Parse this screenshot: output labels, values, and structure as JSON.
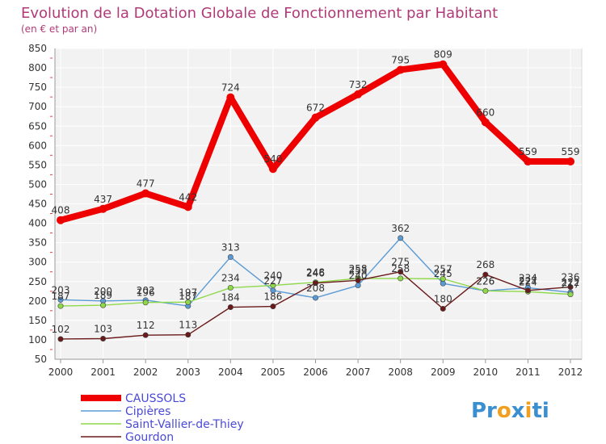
{
  "chart_data": {
    "type": "line",
    "title": "Evolution de la Dotation Globale de Fonctionnement par Habitant",
    "subtitle": "(en € et par an)",
    "categories": [
      "2000",
      "2001",
      "2002",
      "2003",
      "2004",
      "2005",
      "2006",
      "2007",
      "2008",
      "2009",
      "2010",
      "2011",
      "2012"
    ],
    "ylim": [
      50,
      850
    ],
    "yticks": [
      50,
      100,
      150,
      200,
      250,
      300,
      350,
      400,
      450,
      500,
      550,
      600,
      650,
      700,
      750,
      800,
      850
    ],
    "grid": true,
    "legend_position": "bottom-left",
    "series": [
      {
        "name": "CAUSSOLS",
        "color": "#ee0000",
        "values": [
          408,
          437,
          477,
          442,
          724,
          540,
          672,
          732,
          795,
          809,
          660,
          559,
          559
        ],
        "labels": [
          "408",
          "437",
          "477",
          "442",
          "724",
          "540",
          "672",
          "732",
          "795",
          "809",
          "660",
          "559",
          "559"
        ]
      },
      {
        "name": "Cipières",
        "color": "#5b9bd5",
        "values": [
          203,
          200,
          202,
          187,
          313,
          227,
          208,
          240,
          362,
          245,
          226,
          234,
          222
        ],
        "labels": [
          "203",
          "200",
          "202",
          "187",
          "313",
          "227",
          "208",
          "240",
          "362",
          "245",
          "226",
          "234",
          "222"
        ]
      },
      {
        "name": "Saint-Vallier-de-Thiey",
        "color": "#8ed94a",
        "values": [
          187,
          189,
          196,
          197,
          234,
          240,
          248,
          258,
          258,
          257,
          226,
          224,
          217
        ],
        "labels": [
          "187",
          "189",
          "196",
          "197",
          "234",
          "240",
          "248",
          "258",
          "258",
          "257",
          "226",
          "224",
          "217"
        ]
      },
      {
        "name": "Gourdon",
        "color": "#6a1a1a",
        "values": [
          102,
          103,
          112,
          113,
          184,
          186,
          246,
          253,
          275,
          180,
          268,
          227,
          236
        ],
        "labels": [
          "102",
          "103",
          "112",
          "113",
          "184",
          "186",
          "246",
          "253",
          "275",
          "180",
          "268",
          "227",
          "236"
        ]
      }
    ]
  },
  "branding": {
    "logo_parts": [
      {
        "text": "Pr",
        "color": "#3a8fd0"
      },
      {
        "text": "o",
        "color": "#f0a020"
      },
      {
        "text": "x",
        "color": "#3a8fd0"
      },
      {
        "text": "i",
        "color": "#f0a020"
      },
      {
        "text": "ti",
        "color": "#3a8fd0"
      }
    ]
  }
}
